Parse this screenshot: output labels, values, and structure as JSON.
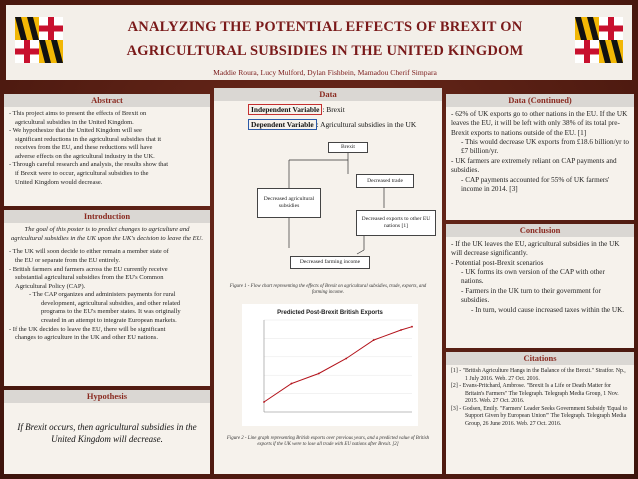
{
  "header": {
    "title_line1": "ANALYZING THE POTENTIAL EFFECTS OF BREXIT ON",
    "title_line2": "AGRICULTURAL SUBSIDIES IN THE UNITED KINGDOM",
    "authors": "Maddie Roura, Lucy Mulford, Dylan Fishbein, Mamadou Cherif Simpara"
  },
  "abstract": {
    "heading": "Abstract",
    "items": [
      "- This project aims to present the effects of Brexit on",
      "agricultural subsidies in the United Kingdom.",
      "- We hypothesize that the United Kingdom will see",
      "significant reductions in the agricultural subsidies that it",
      "receives from the EU, and these reductions will have",
      "adverse effects on the agricultural industry in the UK.",
      "- Through careful research and analysis, the results show that",
      "if Brexit were to occur, agricultural subsidies to the",
      "United Kingdom would decrease."
    ]
  },
  "introduction": {
    "heading": "Introduction",
    "goal": "The goal of this poster is to predict changes to agriculture and agricultural subsidies in the UK upon the UK's decision to leave the EU.",
    "items": [
      "- The UK will soon decide to either remain a member state of",
      "the EU or separate from the EU entirely.",
      "- British farmers and farmers across the EU currently receive",
      "substantial agricultural subsidies from the EU's Common",
      "Agricultural Policy (CAP).",
      "- The CAP organizes and administers payments for rural",
      "development, agricultural subsidies, and other related",
      "programs to the EU's member states. It was originally",
      "created in an attempt to integrate European markets.",
      "- If the UK decides to leave the EU, there will be significant",
      "changes to agriculture in the UK and other EU nations."
    ]
  },
  "hypothesis": {
    "heading": "Hypothesis",
    "text": "If Brexit occurs, then agricultural subsidies in the United Kingdom will decrease."
  },
  "data": {
    "heading": "Data",
    "independent_label": "Independent Variable",
    "independent_value": ": Brexit",
    "dependent_label": "Dependent Variable",
    "dependent_value": ": Agricultural subsidies in the UK",
    "flow": {
      "brexit": "Brexit",
      "decreased_trade": "Decreased trade",
      "decreased_subsidies": "Decreased agricultural subsidies",
      "decreased_exports": "Decreased exports to other EU nations [1]",
      "decreased_income": "Decreased farming income"
    },
    "figure1_caption": "Figure 1 - Flow chart representing the effects of Brexit on agricultural subsidies, trade, exports, and farming income.",
    "figure2_caption": "Figure 2 - Line graph representing British exports over previous years, and a predicted value of British exports if the UK were to lose all trade with EU nations after Brexit. [2]"
  },
  "chart_data": {
    "type": "line",
    "title": "Predicted Post-Brexit British Exports",
    "xlabel": "",
    "ylabel": "",
    "x": [
      1990,
      1995,
      2000,
      2005,
      2010,
      2015,
      2017
    ],
    "series": [
      {
        "values": [
          180,
          235,
          265,
          310,
          365,
          395,
          405
        ]
      }
    ]
  },
  "data_continued": {
    "heading": "Data (Continued)",
    "items": [
      "- 62% of UK exports go to other nations in the EU. If the UK leaves the EU, it will be left with only 38% of its total pre-Brexit exports to nations outside of the EU. [1]",
      "- This would decrease UK exports from £18.6 billion/yr to £7 billion/yr.",
      "- UK farmers are extremely reliant on CAP payments and subsidies.",
      "- CAP payments accounted for 55% of UK farmers' income in 2014. [3]"
    ]
  },
  "conclusion": {
    "heading": "Conclusion",
    "items": [
      "- If the UK leaves the EU, agricultural subsidies in the UK will decrease significantly.",
      "- Potential post-Brexit scenarios",
      "- UK forms its own version of the CAP with other nations.",
      "- Farmers in the UK turn to their government for subsidies.",
      "- In turn, would cause increased taxes within the UK."
    ]
  },
  "citations": {
    "heading": "Citations",
    "items": [
      "[1] - \"British Agriculture Hangs in the Balance of the Brexit.\" Stratfor. Np., 1 July 2016. Web. 27 Oct. 2016.",
      "[2] - Evans-Pritchard, Ambrose. \"Brexit Is a Life or Death Matter for Britain's Farmers\" The Telegraph. Telegraph Media Group, 1 Nov. 2015. Web. 27 Oct. 2016.",
      "[3] - Godsen, Emily. \"Farmers' Leader Seeks Government Subsidy 'Equal to Support Given by European Union'\" The Telegraph. Telegraph Media Group, 26 June 2016. Web. 27 Oct. 2016."
    ]
  },
  "colors": {
    "maroon": "#7a1a1a",
    "background": "#5a1e14",
    "panel": "#f6f2ec",
    "flag_red": "#c8102e",
    "flag_gold": "#f2b705"
  }
}
